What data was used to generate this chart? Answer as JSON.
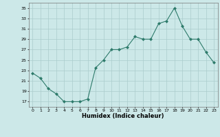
{
  "x": [
    0,
    1,
    2,
    3,
    4,
    5,
    6,
    7,
    8,
    9,
    10,
    11,
    12,
    13,
    14,
    15,
    16,
    17,
    18,
    19,
    20,
    21,
    22,
    23
  ],
  "y": [
    22.5,
    21.5,
    19.5,
    18.5,
    17.0,
    17.0,
    17.0,
    17.5,
    23.5,
    25.0,
    27.0,
    27.0,
    27.5,
    29.5,
    29.0,
    29.0,
    32.0,
    32.5,
    35.0,
    31.5,
    29.0,
    29.0,
    26.5,
    24.5
  ],
  "xlabel": "Humidex (Indice chaleur)",
  "yticks": [
    17,
    19,
    21,
    23,
    25,
    27,
    29,
    31,
    33,
    35
  ],
  "xticks": [
    0,
    1,
    2,
    3,
    4,
    5,
    6,
    7,
    8,
    9,
    10,
    11,
    12,
    13,
    14,
    15,
    16,
    17,
    18,
    19,
    20,
    21,
    22,
    23
  ],
  "ylim": [
    16,
    36
  ],
  "xlim": [
    -0.5,
    23.5
  ],
  "line_color": "#2d7a6a",
  "marker_color": "#2d7a6a",
  "bg_color": "#cce8e8",
  "grid_color": "#aacccc",
  "axis_bg": "#cce8e8"
}
